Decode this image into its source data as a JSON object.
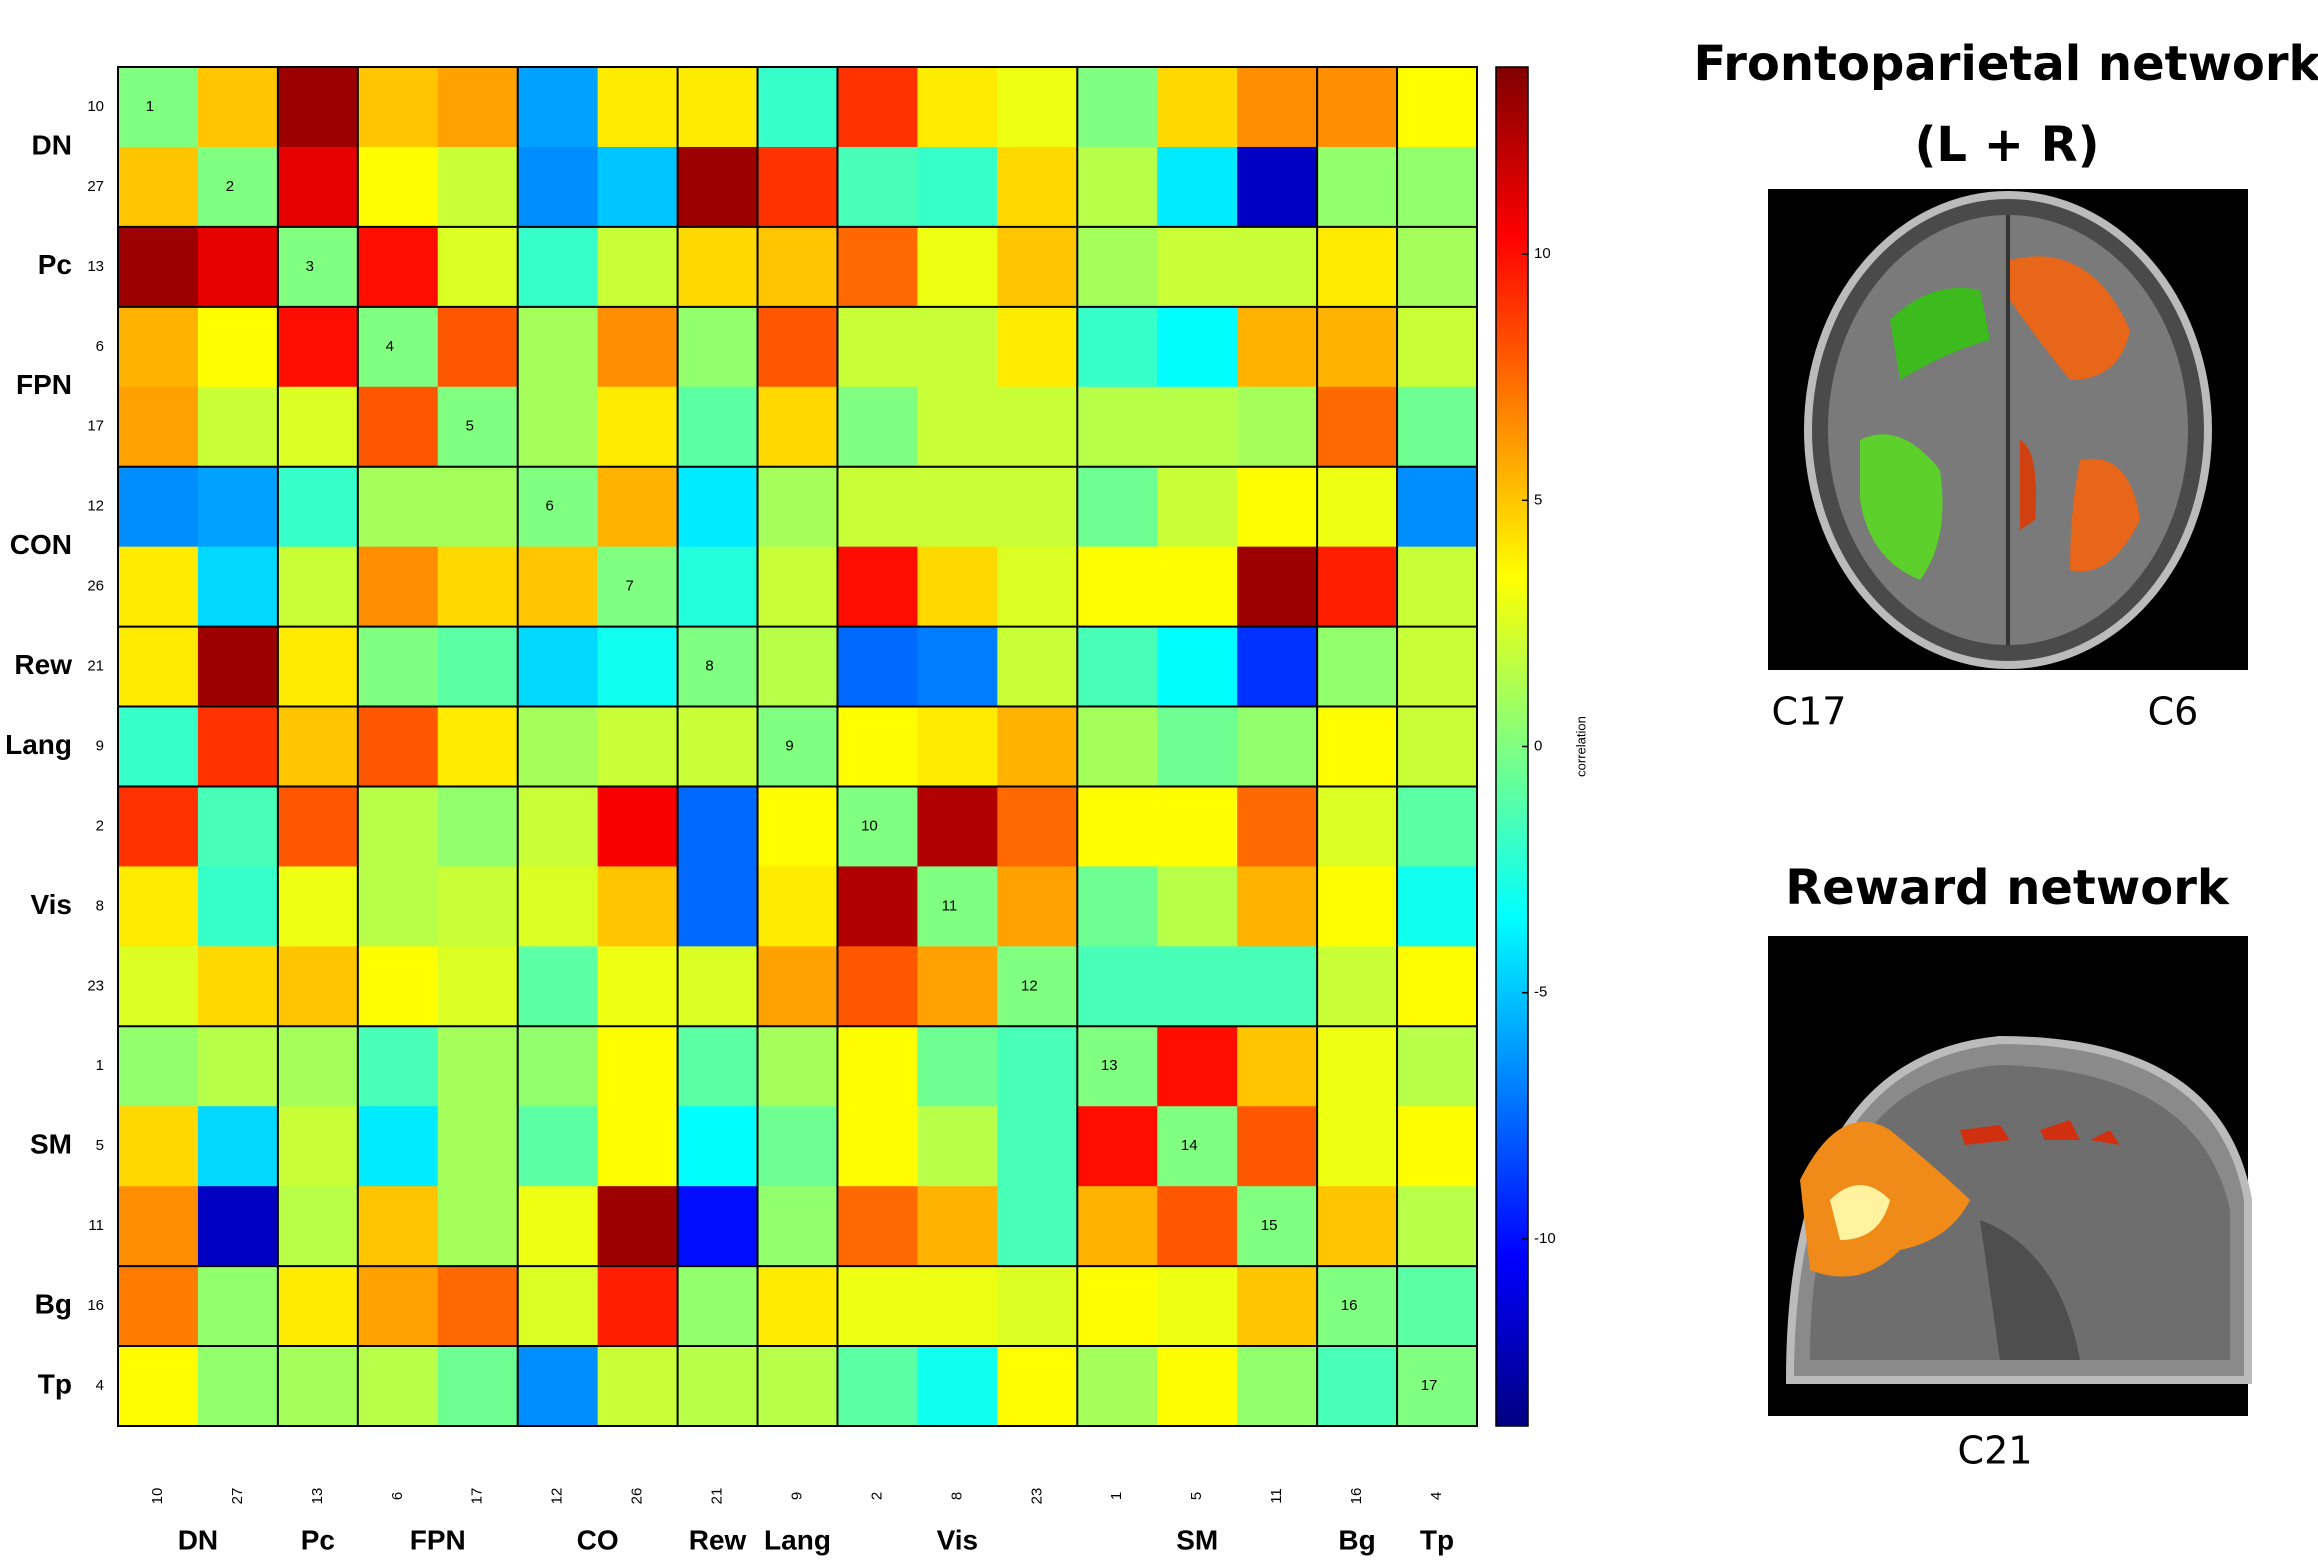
{
  "chart_data": {
    "type": "heatmap",
    "colormap": "jet",
    "categories": [
      "10",
      "27",
      "13",
      "6",
      "17",
      "12",
      "26",
      "21",
      "9",
      "2",
      "8",
      "23",
      "1",
      "5",
      "11",
      "16",
      "4"
    ],
    "row_groups": [
      {
        "label": "DN",
        "size": 2
      },
      {
        "label": "Pc",
        "size": 1
      },
      {
        "label": "FPN",
        "size": 2
      },
      {
        "label": "CON",
        "size": 2
      },
      {
        "label": "Rew",
        "size": 1
      },
      {
        "label": "Lang",
        "size": 1
      },
      {
        "label": "Vis",
        "size": 3
      },
      {
        "label": "SM",
        "size": 3
      },
      {
        "label": "Bg",
        "size": 1
      },
      {
        "label": "Tp",
        "size": 1
      }
    ],
    "col_groups": [
      {
        "label": "DN",
        "size": 2
      },
      {
        "label": "Pc",
        "size": 1
      },
      {
        "label": "FPN",
        "size": 2
      },
      {
        "label": "CO",
        "size": 2
      },
      {
        "label": "Rew",
        "size": 1
      },
      {
        "label": "Lang",
        "size": 1
      },
      {
        "label": "Vis",
        "size": 3
      },
      {
        "label": "SM",
        "size": 3
      },
      {
        "label": "Bg",
        "size": 1
      },
      {
        "label": "Tp",
        "size": 1
      }
    ],
    "diagonal_labels": [
      "1",
      "2",
      "3",
      "4",
      "5",
      "6",
      "7",
      "8",
      "9",
      "10",
      "11",
      "12",
      "13",
      "14",
      "15",
      "16",
      "17"
    ],
    "values": [
      [
        0,
        5,
        13,
        5,
        6,
        -6,
        4,
        4,
        -2,
        9,
        4,
        3,
        0,
        4.5,
        6.5,
        6.5,
        3.5
      ],
      [
        5,
        0,
        11,
        3.5,
        2,
        -6.5,
        -5,
        13,
        9,
        -1.5,
        -2,
        4.5,
        1.5,
        -4,
        -12,
        0.5,
        0.5
      ],
      [
        13,
        11,
        0,
        10,
        2.5,
        -2,
        2,
        4.5,
        5,
        7.5,
        3,
        5,
        1,
        2,
        2,
        4,
        1
      ],
      [
        5.5,
        3.5,
        10,
        0,
        8,
        1,
        6.5,
        0.5,
        8,
        2,
        2,
        4,
        -2,
        -3.5,
        5.5,
        5.5,
        2
      ],
      [
        6,
        2,
        2.5,
        8,
        0,
        1,
        4,
        -1,
        4.5,
        0,
        2,
        2,
        1.5,
        1.5,
        1,
        7.5,
        -0.5
      ],
      [
        -6.5,
        -6,
        -2,
        1,
        1,
        0,
        5.5,
        -4,
        1,
        2,
        2,
        2,
        -0.5,
        2,
        3.5,
        3,
        -6.5
      ],
      [
        4,
        -4.5,
        2,
        6.5,
        4.5,
        5,
        0,
        -2.5,
        2,
        10,
        4.5,
        2.5,
        3.5,
        3.5,
        13,
        9.5,
        2
      ],
      [
        4,
        13,
        4,
        0,
        -1,
        -4.5,
        -3,
        0,
        1.5,
        -7.5,
        -7,
        2,
        -1.5,
        -3.5,
        -9,
        0.5,
        2
      ],
      [
        -2,
        9,
        5,
        8,
        4,
        1,
        2,
        2,
        0,
        3.5,
        4,
        5.5,
        1,
        -0.5,
        0.5,
        3.5,
        2
      ],
      [
        9,
        -1.5,
        8,
        1.5,
        0.5,
        2,
        10.5,
        -7.5,
        3.5,
        0,
        12.5,
        7.5,
        3.5,
        3.5,
        7.5,
        2.5,
        -1
      ],
      [
        4,
        -2,
        3,
        1.5,
        2,
        2.5,
        5,
        -7.5,
        4,
        12.5,
        0,
        6,
        -0.5,
        1.5,
        5.5,
        3.5,
        -3
      ],
      [
        2.5,
        4.5,
        5,
        3.5,
        2.5,
        -1,
        3,
        2.5,
        6,
        8,
        6,
        0,
        -1.5,
        -1.5,
        -1.5,
        2,
        3.5
      ],
      [
        0.5,
        1.5,
        1,
        -1.5,
        1,
        0.5,
        3.5,
        -1,
        1,
        3.5,
        -0.5,
        -1.5,
        0,
        10,
        5,
        3,
        1.5
      ],
      [
        4.5,
        -4.5,
        2,
        -4,
        1,
        -1,
        3.5,
        -3.5,
        -0.5,
        3.5,
        1.5,
        -1.5,
        10,
        0,
        8,
        3,
        3.5
      ],
      [
        6.5,
        -12,
        1.5,
        5,
        1,
        3,
        13,
        -10,
        0.5,
        7.5,
        5.5,
        -1.5,
        5.5,
        8,
        0,
        5,
        1.5
      ],
      [
        7,
        0.5,
        4,
        6,
        7.5,
        2.5,
        9.5,
        0.5,
        4,
        3,
        3,
        2.5,
        3.5,
        3,
        5,
        0,
        -1
      ],
      [
        3.5,
        0.5,
        1,
        1.5,
        -0.5,
        -6.5,
        2,
        1.5,
        1.5,
        -1,
        -3,
        3.5,
        1,
        3.5,
        0.5,
        -1.5,
        0
      ]
    ],
    "colorbar_label": "correlation",
    "zlim": [
      -13.8,
      13.8
    ],
    "zticks": [
      -10,
      -5,
      0,
      5,
      10
    ]
  },
  "panels": [
    {
      "title": [
        "Frontoparietal network",
        "(L + R)"
      ],
      "labels": [
        "C17",
        "C6"
      ]
    },
    {
      "title": [
        "Reward network"
      ],
      "labels": [
        "C21"
      ]
    }
  ]
}
